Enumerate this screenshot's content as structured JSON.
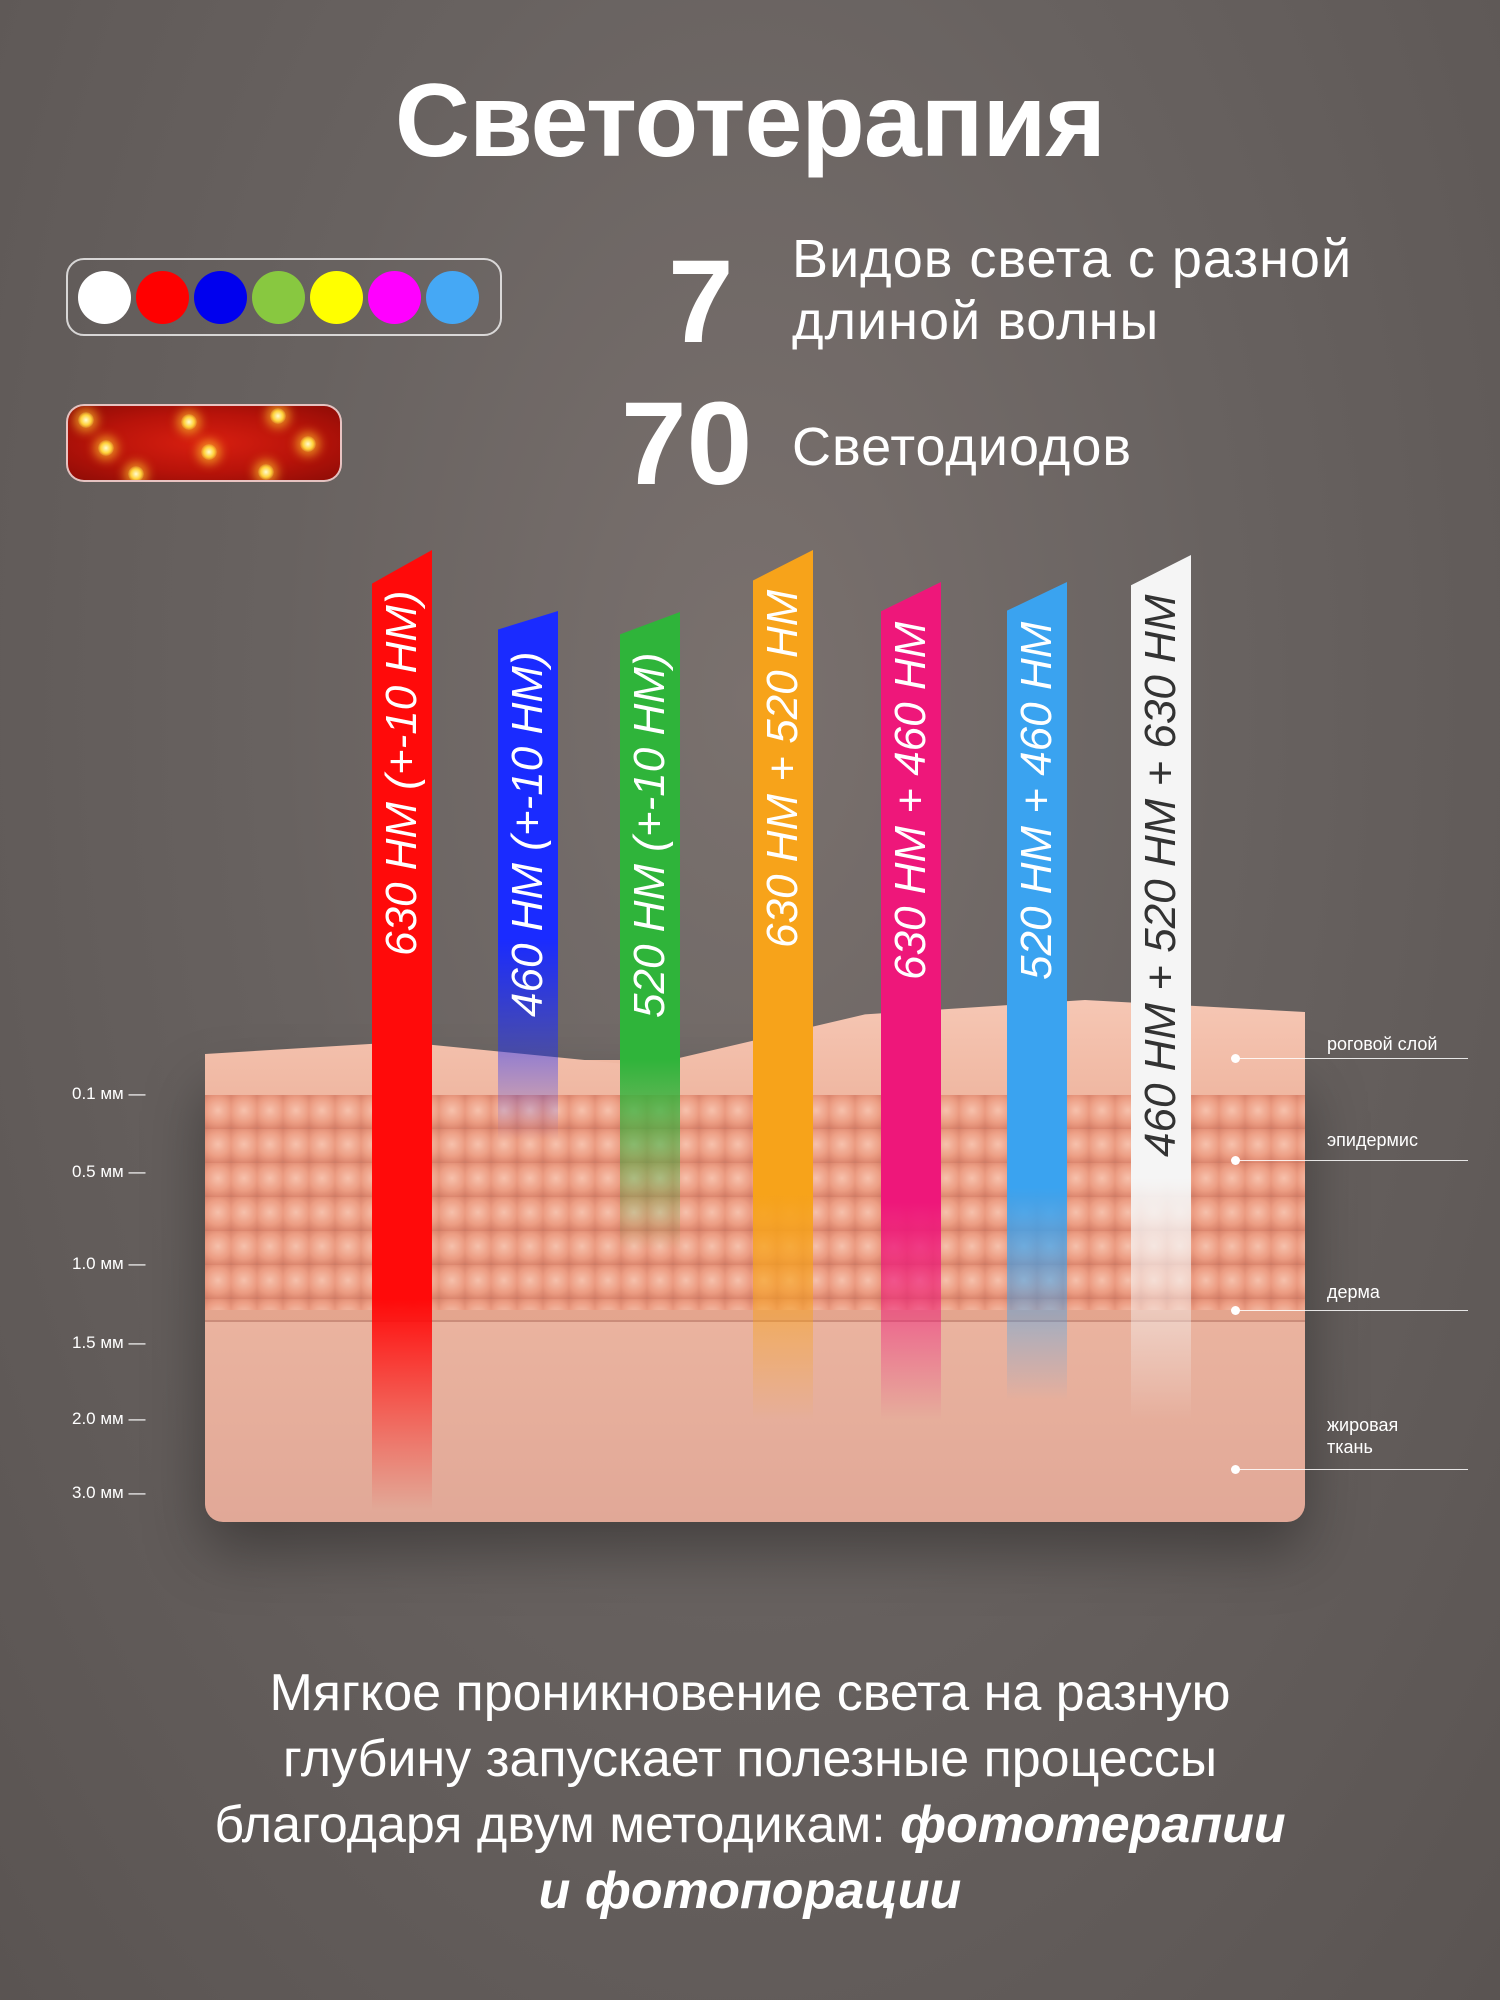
{
  "title": "Светотерапия",
  "stats": [
    {
      "number": "7",
      "line1": "Видов света с разной",
      "line2": "длиной волны"
    },
    {
      "number": "70",
      "line1": "Светодиодов"
    }
  ],
  "light_colors": [
    "#ffffff",
    "#ff0000",
    "#0000ee",
    "#88c840",
    "#ffff00",
    "#ff00ff",
    "#45a8f5"
  ],
  "beams": [
    {
      "label": "630 НМ (+-10 НМ)",
      "color": "#ff0a0a",
      "text_color": "#ffffff"
    },
    {
      "label": "460 НМ (+-10 НМ)",
      "color": "#1a2bff",
      "text_color": "#ffffff"
    },
    {
      "label": "520 НМ (+-10 НМ)",
      "color": "#2fb43a",
      "text_color": "#ffffff"
    },
    {
      "label": "630 НМ + 520 НМ",
      "color": "#f7a31a",
      "text_color": "#ffffff"
    },
    {
      "label": "630 НМ + 460 НМ",
      "color": "#ee177a",
      "text_color": "#ffffff"
    },
    {
      "label": "520 НМ + 460 НМ",
      "color": "#3aa3f0",
      "text_color": "#ffffff"
    },
    {
      "label": "460 НМ + 520 НМ + 630 НМ",
      "color": "#f5f5f5",
      "text_color": "#333333"
    }
  ],
  "depth_scale": [
    "0.1 мм —",
    "0.5 мм —",
    "1.0 мм —",
    "1.5 мм —",
    "2.0 мм —",
    "3.0 мм —"
  ],
  "layers": [
    "роговой слой",
    "эпидермис",
    "дерма",
    "жировая",
    "ткань"
  ],
  "bottom": {
    "line1": "Мягкое проникновение света на разную",
    "line2": "глубину запускает полезные процессы",
    "line3_prefix": "благодаря двум методикам: ",
    "line3_bold": "фототерапии",
    "line4": "и фотопорации"
  }
}
